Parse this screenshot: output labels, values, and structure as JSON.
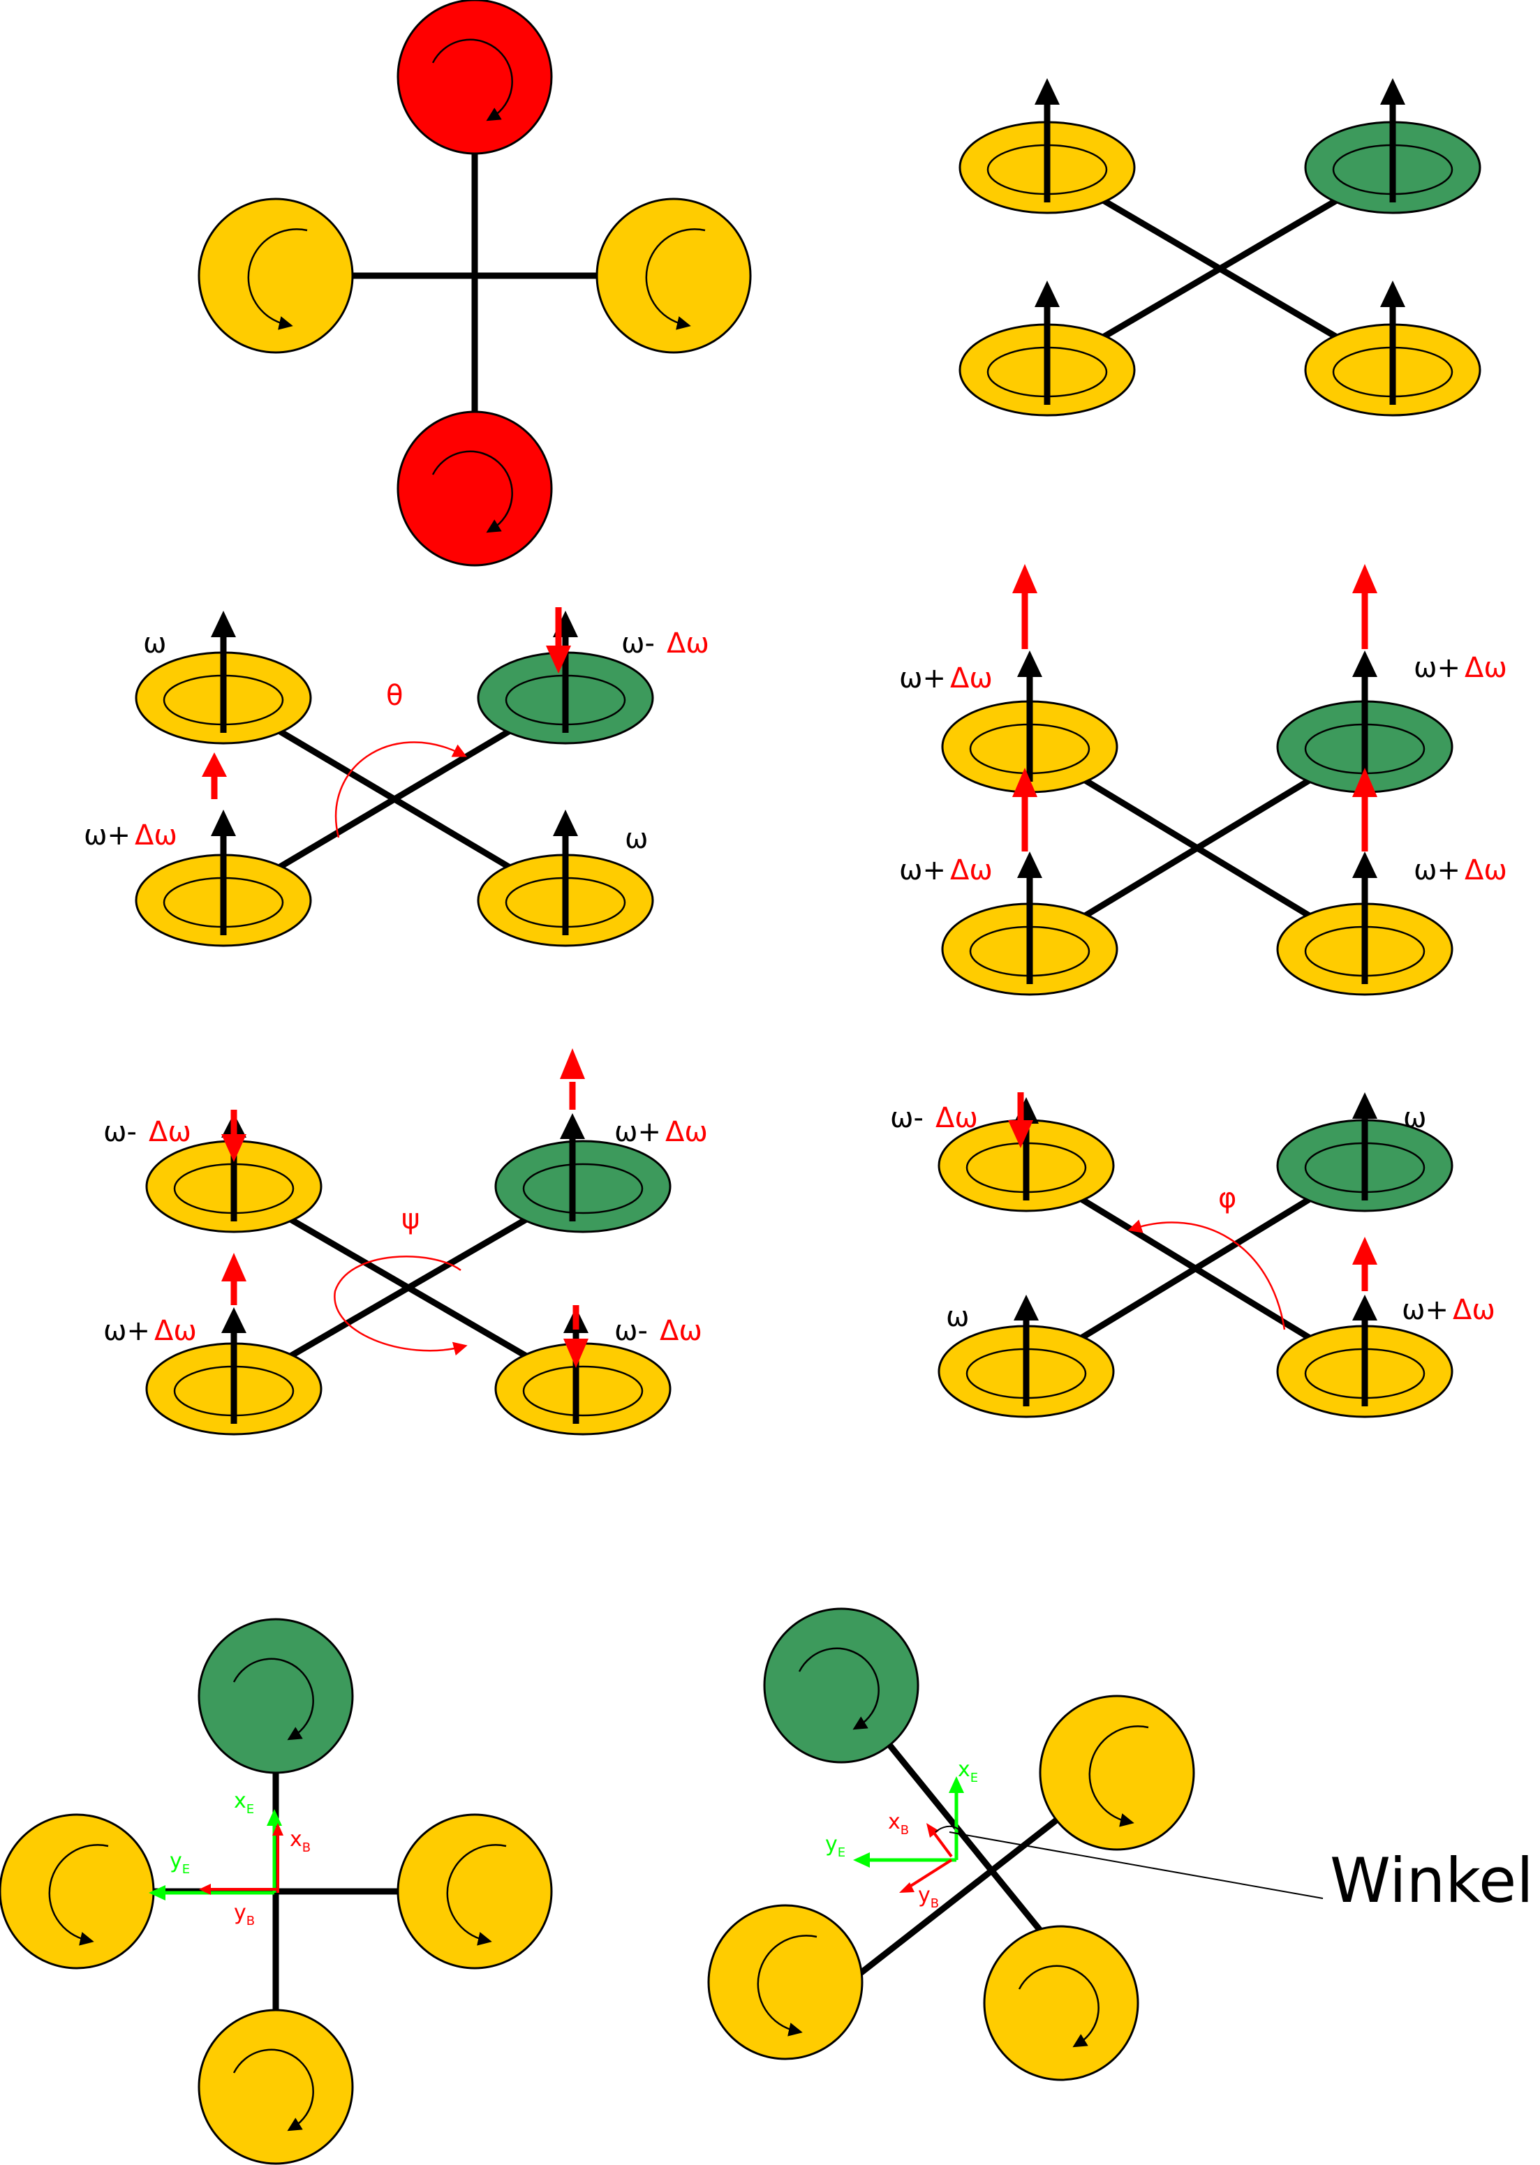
{
  "colors": {
    "yellow": "#FFCC00",
    "green": "#3D9A5C",
    "red": "#FF0000",
    "black": "#000000",
    "axis_green": "#00FF00"
  },
  "labels": {
    "w": "ω",
    "w_minus": "ω-",
    "w_plus": "ω+",
    "dw": "Δω",
    "theta": "θ",
    "psi": "ψ",
    "phi": "φ",
    "x": "x",
    "y": "y",
    "sub_E": "E",
    "sub_B": "B",
    "winkel_psi": "Winkel psi"
  }
}
